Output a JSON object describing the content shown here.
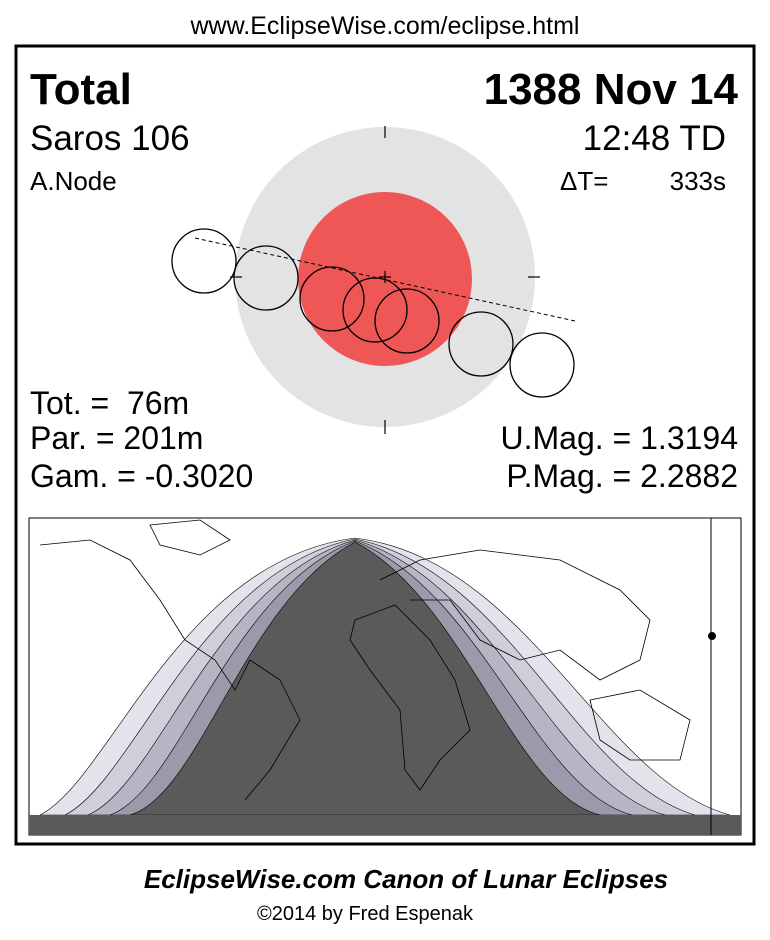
{
  "header": {
    "url": "www.EclipseWise.com/eclipse.html"
  },
  "eclipse": {
    "type": "Total",
    "date": "1388 Nov 14",
    "saros": "Saros 106",
    "time": "12:48 TD",
    "node": "A.Node",
    "delta_t_label": "ΔT=",
    "delta_t": "333s",
    "tot": "Tot. =  76m",
    "par": "Par. = 201m",
    "gam": "Gam. = -0.3020",
    "umag": "U.Mag. = 1.3194",
    "pmag": "P.Mag. = 2.2882"
  },
  "footer": {
    "title": "EclipseWise.com Canon of Lunar Eclipses",
    "credit": "©2014 by Fred Espenak"
  }
}
